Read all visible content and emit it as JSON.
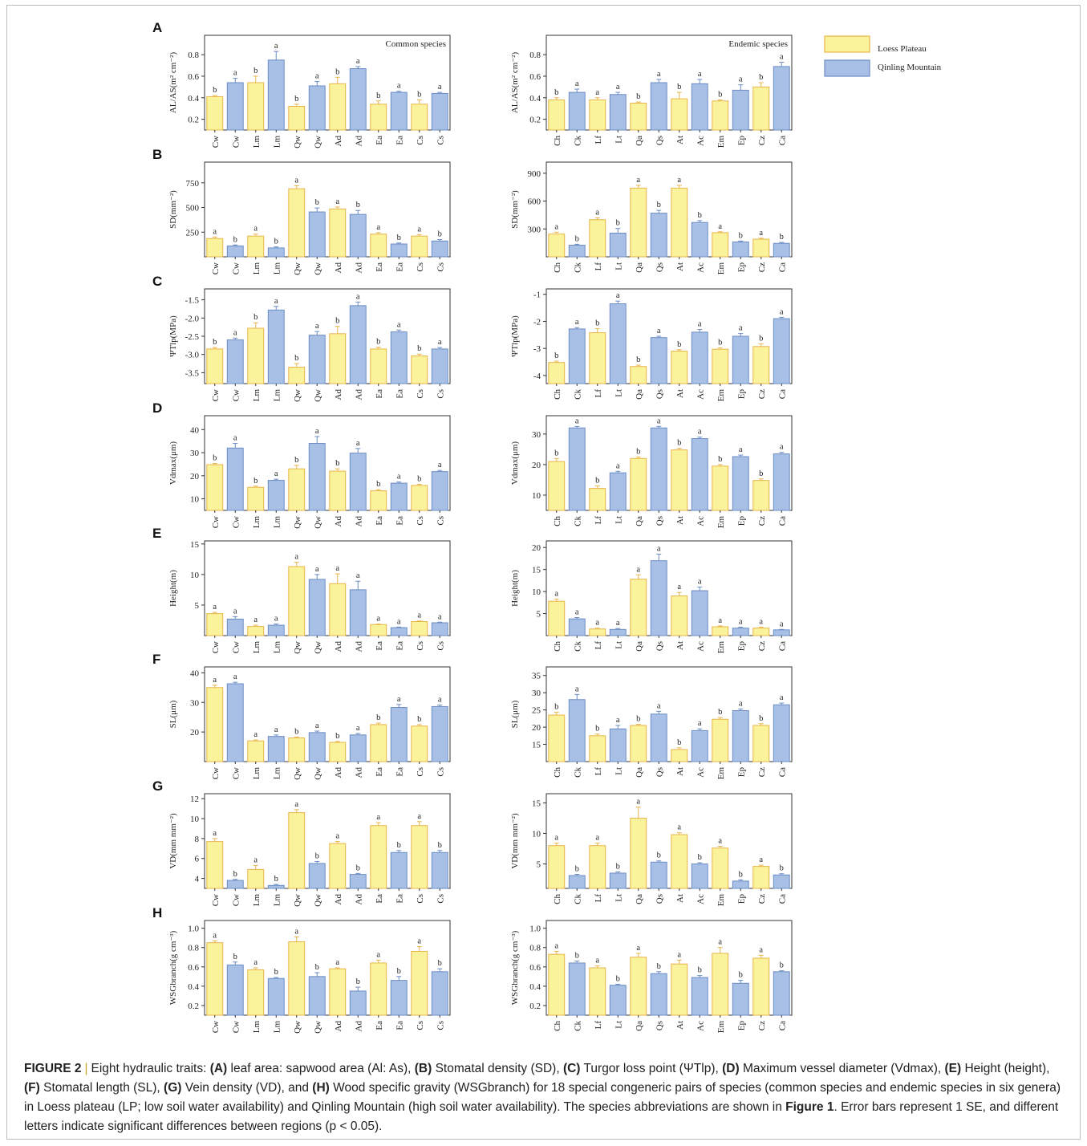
{
  "colors": {
    "loess_fill": "#fbf39c",
    "loess_edge": "#e8b54a",
    "qinling_fill": "#a8c0e6",
    "qinling_edge": "#6b8cc4",
    "axis": "#333333"
  },
  "legend": {
    "loess": "Loess Plateau",
    "qinling": "Qinling Mountain"
  },
  "caption": {
    "label": "FIGURE 2",
    "intro": "Eight hydraulic traits:",
    "a_tag": "(A)",
    "a_text": "leaf area: sapwood area (Al: As),",
    "b_tag": "(B)",
    "b_text": "Stomatal density (SD),",
    "c_tag": "(C)",
    "c_text": "Turgor loss point (ΨTlp),",
    "d_tag": "(D)",
    "d_text": "Maximum vessel diameter (Vdmax),",
    "e_tag": "(E)",
    "e_text": "Height (height),",
    "f_tag": "(F)",
    "f_text": "Stomatal length (SL),",
    "g_tag": "(G)",
    "g_text": "Vein density (VD), and",
    "h_tag": "(H)",
    "h_text": "Wood specific gravity (WSGbranch) for 18 special congeneric pairs of species (common species and endemic species in six genera) in Loess plateau (LP; low soil water availability) and Qinling Mountain (high soil water availability). The species abbreviations are shown in",
    "fig1": "Figure 1",
    "tail": ". Error bars represent 1 SE, and different letters indicate significant differences between regions (p < 0.05)."
  },
  "chart_data": [
    {
      "panel": "A",
      "group": "common",
      "type": "bar",
      "title": "Common species",
      "ylabel": "AL/AS(m² cm⁻²)",
      "ylim": [
        0.1,
        0.98
      ],
      "ticks": [
        0.2,
        0.4,
        0.6,
        0.8
      ],
      "categories": [
        "Cw",
        "Cw",
        "Lm",
        "Lm",
        "Qw",
        "Qw",
        "Ad",
        "Ad",
        "Ea",
        "Ea",
        "Cs",
        "Cs"
      ],
      "values": [
        0.41,
        0.54,
        0.54,
        0.75,
        0.32,
        0.51,
        0.53,
        0.67,
        0.34,
        0.45,
        0.34,
        0.44
      ],
      "errors": [
        0.01,
        0.04,
        0.06,
        0.08,
        0.02,
        0.04,
        0.06,
        0.02,
        0.03,
        0.01,
        0.04,
        0.01
      ],
      "letters": [
        "b",
        "a",
        "b",
        "a",
        "b",
        "a",
        "b",
        "a",
        "b",
        "a",
        "b",
        "a"
      ]
    },
    {
      "panel": "A",
      "group": "endemic",
      "type": "bar",
      "title": "Endemic species",
      "ylabel": "AL/AS(m² cm⁻²)",
      "ylim": [
        0.1,
        0.98
      ],
      "ticks": [
        0.2,
        0.4,
        0.6,
        0.8
      ],
      "categories": [
        "Ch",
        "Ck",
        "Lf",
        "Lt",
        "Qa",
        "Qs",
        "At",
        "Ac",
        "Em",
        "Ep",
        "Cz",
        "Ca"
      ],
      "values": [
        0.38,
        0.45,
        0.38,
        0.43,
        0.35,
        0.54,
        0.39,
        0.53,
        0.37,
        0.47,
        0.5,
        0.69
      ],
      "errors": [
        0.02,
        0.03,
        0.02,
        0.02,
        0.01,
        0.03,
        0.06,
        0.04,
        0.01,
        0.05,
        0.04,
        0.04
      ],
      "letters": [
        "b",
        "a",
        "a",
        "a",
        "b",
        "a",
        "b",
        "a",
        "b",
        "a",
        "b",
        "a"
      ]
    },
    {
      "panel": "B",
      "group": "common",
      "type": "bar",
      "ylabel": "SD(mm⁻²)",
      "ylim": [
        0,
        960
      ],
      "ticks": [
        250,
        500,
        750
      ],
      "categories": [
        "Cw",
        "Cw",
        "Lm",
        "Lm",
        "Qw",
        "Qw",
        "Ad",
        "Ad",
        "Ea",
        "Ea",
        "Cs",
        "Cs"
      ],
      "values": [
        185,
        110,
        210,
        90,
        690,
        455,
        485,
        430,
        230,
        130,
        210,
        160
      ],
      "errors": [
        15,
        10,
        20,
        10,
        30,
        40,
        20,
        40,
        15,
        10,
        15,
        15
      ],
      "letters": [
        "a",
        "b",
        "a",
        "b",
        "a",
        "b",
        "a",
        "b",
        "a",
        "b",
        "a",
        "b"
      ]
    },
    {
      "panel": "B",
      "group": "endemic",
      "type": "bar",
      "ylabel": "SD(mm⁻²)",
      "ylim": [
        0,
        1020
      ],
      "ticks": [
        300,
        600,
        900
      ],
      "categories": [
        "Ch",
        "Ck",
        "Lf",
        "Lt",
        "Qa",
        "Qs",
        "At",
        "Ac",
        "Em",
        "Ep",
        "Cz",
        "Ca"
      ],
      "values": [
        245,
        125,
        400,
        255,
        740,
        470,
        740,
        370,
        260,
        160,
        190,
        145
      ],
      "errors": [
        20,
        10,
        20,
        50,
        30,
        30,
        30,
        20,
        10,
        10,
        10,
        10
      ],
      "letters": [
        "a",
        "b",
        "a",
        "b",
        "a",
        "b",
        "a",
        "b",
        "a",
        "b",
        "a",
        "b"
      ]
    },
    {
      "panel": "C",
      "group": "common",
      "type": "bar",
      "ylabel": "ΨTlp(MPa)",
      "ylim": [
        -3.8,
        -1.2
      ],
      "ticks": [
        -3.5,
        -3.0,
        -2.5,
        -2.0,
        -1.5
      ],
      "categories": [
        "Cw",
        "Cw",
        "Lm",
        "Lm",
        "Qw",
        "Qw",
        "Ad",
        "Ad",
        "Ea",
        "Ea",
        "Cs",
        "Cs"
      ],
      "values": [
        -2.85,
        -2.6,
        -2.28,
        -1.78,
        -3.35,
        -2.47,
        -2.43,
        -1.66,
        -2.85,
        -2.38,
        -3.04,
        -2.85
      ],
      "errors": [
        0.04,
        0.05,
        0.15,
        0.1,
        0.1,
        0.1,
        0.2,
        0.1,
        0.05,
        0.05,
        0.05,
        0.04
      ],
      "letters": [
        "b",
        "a",
        "b",
        "a",
        "b",
        "a",
        "b",
        "a",
        "b",
        "a",
        "b",
        "a"
      ]
    },
    {
      "panel": "C",
      "group": "endemic",
      "type": "bar",
      "ylabel": "ΨTlp(MPa)",
      "ylim": [
        -4.3,
        -0.8
      ],
      "ticks": [
        -4,
        -3,
        -2,
        -1
      ],
      "categories": [
        "Ch",
        "Ck",
        "Lf",
        "Lt",
        "Qa",
        "Qs",
        "At",
        "Ac",
        "Em",
        "Ep",
        "Cz",
        "Ca"
      ],
      "values": [
        -3.52,
        -2.28,
        -2.42,
        -1.35,
        -3.67,
        -2.6,
        -3.1,
        -2.4,
        -3.03,
        -2.55,
        -2.93,
        -1.9
      ],
      "errors": [
        0.05,
        0.05,
        0.15,
        0.1,
        0.05,
        0.05,
        0.05,
        0.1,
        0.05,
        0.1,
        0.1,
        0.05
      ],
      "letters": [
        "b",
        "a",
        "b",
        "a",
        "b",
        "a",
        "b",
        "a",
        "b",
        "a",
        "b",
        "a"
      ]
    },
    {
      "panel": "D",
      "group": "common",
      "type": "bar",
      "ylabel": "Vdmax(μm)",
      "ylim": [
        5,
        46
      ],
      "ticks": [
        10,
        20,
        30,
        40
      ],
      "categories": [
        "Cw",
        "Cw",
        "Lm",
        "Lm",
        "Qw",
        "Qw",
        "Ad",
        "Ad",
        "Ea",
        "Ea",
        "Cs",
        "Cs"
      ],
      "values": [
        24.8,
        32.0,
        15.0,
        18.0,
        23.0,
        34.0,
        22.0,
        29.8,
        13.5,
        16.8,
        15.8,
        21.8
      ],
      "errors": [
        0.5,
        2.0,
        0.5,
        0.5,
        1.5,
        3.0,
        1.0,
        2.0,
        0.5,
        0.5,
        0.5,
        0.5
      ],
      "letters": [
        "b",
        "a",
        "b",
        "a",
        "b",
        "a",
        "b",
        "a",
        "b",
        "a",
        "b",
        "a"
      ]
    },
    {
      "panel": "D",
      "group": "endemic",
      "type": "bar",
      "ylabel": "Vdmax(μm)",
      "ylim": [
        5,
        36
      ],
      "ticks": [
        10,
        20,
        30
      ],
      "categories": [
        "Ch",
        "Ck",
        "Lf",
        "Lt",
        "Qa",
        "Qs",
        "At",
        "Ac",
        "Em",
        "Ep",
        "Cz",
        "Ca"
      ],
      "values": [
        21.0,
        32.0,
        12.2,
        17.3,
        22.0,
        32.0,
        24.8,
        28.5,
        19.5,
        22.6,
        14.8,
        23.5
      ],
      "errors": [
        1.0,
        0.5,
        0.8,
        0.5,
        0.5,
        0.5,
        0.5,
        0.5,
        0.5,
        0.5,
        0.5,
        0.5
      ],
      "letters": [
        "b",
        "a",
        "b",
        "a",
        "b",
        "a",
        "b",
        "a",
        "b",
        "a",
        "b",
        "a"
      ]
    },
    {
      "panel": "E",
      "group": "common",
      "type": "bar",
      "ylabel": "Height(m)",
      "ylim": [
        0,
        15.5
      ],
      "ticks": [
        5,
        10,
        15
      ],
      "categories": [
        "Cw",
        "Cw",
        "Lm",
        "Lm",
        "Qw",
        "Qw",
        "Ad",
        "Ad",
        "Ea",
        "Ea",
        "Cs",
        "Cs"
      ],
      "values": [
        3.6,
        2.7,
        1.5,
        1.7,
        11.3,
        9.2,
        8.5,
        7.5,
        1.8,
        1.3,
        2.3,
        2.1
      ],
      "errors": [
        0.2,
        0.4,
        0.2,
        0.2,
        0.7,
        0.8,
        1.6,
        1.4,
        0.1,
        0.1,
        0.1,
        0.1
      ],
      "letters": [
        "a",
        "a",
        "a",
        "a",
        "a",
        "a",
        "a",
        "a",
        "a",
        "a",
        "a",
        "a"
      ]
    },
    {
      "panel": "E",
      "group": "endemic",
      "type": "bar",
      "ylabel": "Height(m)",
      "ylim": [
        0,
        21.5
      ],
      "ticks": [
        5,
        10,
        15,
        20
      ],
      "categories": [
        "Ch",
        "Ck",
        "Lf",
        "Lt",
        "Qa",
        "Qs",
        "At",
        "Ac",
        "Em",
        "Ep",
        "Cz",
        "Ca"
      ],
      "values": [
        7.8,
        3.8,
        1.5,
        1.4,
        12.8,
        17.0,
        9.0,
        10.2,
        2.0,
        1.7,
        1.7,
        1.3
      ],
      "errors": [
        0.5,
        0.3,
        0.2,
        0.2,
        1.0,
        1.5,
        0.8,
        0.8,
        0.2,
        0.2,
        0.2,
        0.1
      ],
      "letters": [
        "a",
        "a",
        "a",
        "a",
        "a",
        "a",
        "a",
        "a",
        "a",
        "a",
        "a",
        "a"
      ]
    },
    {
      "panel": "F",
      "group": "common",
      "type": "bar",
      "ylabel": "SL(μm)",
      "ylim": [
        10,
        42
      ],
      "ticks": [
        20,
        30,
        40
      ],
      "categories": [
        "Cw",
        "Cw",
        "Lm",
        "Lm",
        "Qw",
        "Qw",
        "Ad",
        "Ad",
        "Ea",
        "Ea",
        "Cs",
        "Cs"
      ],
      "values": [
        35.0,
        36.3,
        17.0,
        18.5,
        18.0,
        19.8,
        16.5,
        19.0,
        22.5,
        28.3,
        22.0,
        28.6
      ],
      "errors": [
        0.8,
        0.5,
        0.3,
        0.5,
        0.3,
        0.5,
        0.3,
        0.5,
        0.5,
        1.0,
        0.5,
        0.5
      ],
      "letters": [
        "a",
        "a",
        "a",
        "a",
        "b",
        "a",
        "b",
        "a",
        "b",
        "a",
        "b",
        "a"
      ]
    },
    {
      "panel": "F",
      "group": "endemic",
      "type": "bar",
      "ylabel": "SL(μm)",
      "ylim": [
        10,
        37.5
      ],
      "ticks": [
        15,
        20,
        25,
        30,
        35
      ],
      "categories": [
        "Ch",
        "Ck",
        "Lf",
        "Lt",
        "Qa",
        "Qs",
        "At",
        "Ac",
        "Em",
        "Ep",
        "Cz",
        "Ca"
      ],
      "values": [
        23.5,
        28.0,
        17.5,
        19.5,
        20.5,
        23.8,
        13.5,
        19.0,
        22.3,
        24.8,
        20.5,
        26.5
      ],
      "errors": [
        0.8,
        1.5,
        0.5,
        1.0,
        0.3,
        0.8,
        0.5,
        0.5,
        0.5,
        0.5,
        0.5,
        0.5
      ],
      "letters": [
        "b",
        "a",
        "b",
        "a",
        "b",
        "a",
        "b",
        "a",
        "b",
        "a",
        "b",
        "a"
      ]
    },
    {
      "panel": "G",
      "group": "common",
      "type": "bar",
      "ylabel": "VD(mm mm⁻²)",
      "ylim": [
        3,
        12.5
      ],
      "ticks": [
        4,
        6,
        8,
        10,
        12
      ],
      "categories": [
        "Cw",
        "Cw",
        "Lm",
        "Lm",
        "Qw",
        "Qw",
        "Ad",
        "Ad",
        "Ea",
        "Ea",
        "Cs",
        "Cs"
      ],
      "values": [
        7.7,
        3.8,
        4.9,
        3.3,
        10.6,
        5.5,
        7.5,
        4.4,
        9.3,
        6.6,
        9.3,
        6.6
      ],
      "errors": [
        0.3,
        0.1,
        0.4,
        0.1,
        0.3,
        0.2,
        0.2,
        0.1,
        0.3,
        0.2,
        0.4,
        0.2
      ],
      "letters": [
        "a",
        "b",
        "a",
        "b",
        "a",
        "b",
        "a",
        "b",
        "a",
        "b",
        "a",
        "b"
      ]
    },
    {
      "panel": "G",
      "group": "endemic",
      "type": "bar",
      "ylabel": "VD(mm mm⁻²)",
      "ylim": [
        1,
        16.5
      ],
      "ticks": [
        5,
        10,
        15
      ],
      "categories": [
        "Ch",
        "Ck",
        "Lf",
        "Lt",
        "Qa",
        "Qs",
        "At",
        "Ac",
        "Em",
        "Ep",
        "Cz",
        "Ca"
      ],
      "values": [
        8.0,
        3.1,
        8.0,
        3.5,
        12.5,
        5.3,
        9.8,
        5.0,
        7.6,
        2.2,
        4.6,
        3.2
      ],
      "errors": [
        0.4,
        0.2,
        0.4,
        0.2,
        1.8,
        0.2,
        0.3,
        0.2,
        0.3,
        0.2,
        0.2,
        0.2
      ],
      "letters": [
        "a",
        "b",
        "a",
        "b",
        "a",
        "b",
        "a",
        "b",
        "a",
        "b",
        "a",
        "b"
      ]
    },
    {
      "panel": "H",
      "group": "common",
      "type": "bar",
      "ylabel": "WSGbranch(g cm⁻³)",
      "ylim": [
        0.1,
        1.08
      ],
      "ticks": [
        0.2,
        0.4,
        0.6,
        0.8,
        1.0
      ],
      "categories": [
        "Cw",
        "Cw",
        "Lm",
        "Lm",
        "Qw",
        "Qw",
        "Ad",
        "Ad",
        "Ea",
        "Ea",
        "Cs",
        "Cs"
      ],
      "values": [
        0.85,
        0.62,
        0.57,
        0.48,
        0.86,
        0.5,
        0.58,
        0.35,
        0.64,
        0.46,
        0.76,
        0.55
      ],
      "errors": [
        0.02,
        0.03,
        0.02,
        0.01,
        0.05,
        0.04,
        0.01,
        0.04,
        0.03,
        0.04,
        0.05,
        0.03
      ],
      "letters": [
        "a",
        "b",
        "a",
        "b",
        "a",
        "b",
        "a",
        "b",
        "a",
        "b",
        "a",
        "b"
      ]
    },
    {
      "panel": "H",
      "group": "endemic",
      "type": "bar",
      "ylabel": "WSGbranch(g cm⁻³)",
      "ylim": [
        0.1,
        1.08
      ],
      "ticks": [
        0.2,
        0.4,
        0.6,
        0.8,
        1.0
      ],
      "categories": [
        "Ch",
        "Ck",
        "Lf",
        "Lt",
        "Qa",
        "Qs",
        "At",
        "Ac",
        "Em",
        "Ep",
        "Cz",
        "Ca"
      ],
      "values": [
        0.73,
        0.64,
        0.59,
        0.41,
        0.7,
        0.53,
        0.63,
        0.49,
        0.74,
        0.43,
        0.69,
        0.55
      ],
      "errors": [
        0.03,
        0.02,
        0.02,
        0.01,
        0.04,
        0.02,
        0.04,
        0.02,
        0.06,
        0.03,
        0.03,
        0.01
      ],
      "letters": [
        "a",
        "b",
        "a",
        "b",
        "a",
        "b",
        "a",
        "b",
        "a",
        "b",
        "a",
        "b"
      ]
    }
  ]
}
